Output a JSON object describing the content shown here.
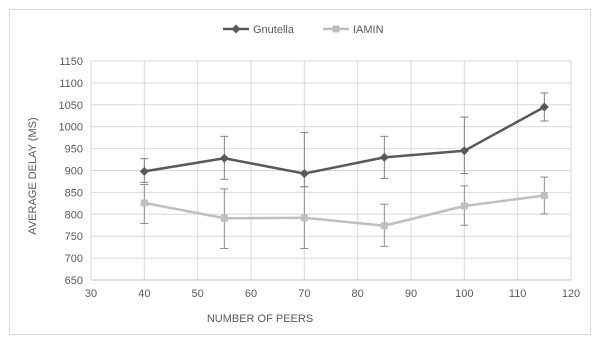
{
  "chart_data": {
    "type": "line",
    "xlabel": "NUMBER OF PEERS",
    "ylabel": "AVERAGE DELAY (MS)",
    "xlim": [
      30,
      120
    ],
    "ylim": [
      650,
      1150
    ],
    "x_ticks": [
      "30",
      "40",
      "50",
      "60",
      "70",
      "80",
      "90",
      "100",
      "110",
      "120"
    ],
    "y_ticks": [
      "650",
      "700",
      "750",
      "800",
      "850",
      "900",
      "950",
      "1000",
      "1050",
      "1100",
      "1150"
    ],
    "grid": true,
    "legend_position": "top-center",
    "x": [
      40,
      55,
      70,
      85,
      100,
      115
    ],
    "series": [
      {
        "name": "Gnutella",
        "color": "#595959",
        "marker": "diamond",
        "values": [
          898,
          928,
          893,
          930,
          945,
          1045
        ],
        "error_low": [
          873,
          880,
          863,
          882,
          893,
          1013
        ],
        "error_high": [
          927,
          978,
          987,
          978,
          1022,
          1077
        ]
      },
      {
        "name": "IAMIN",
        "color": "#bfbfbf",
        "marker": "square",
        "values": [
          826,
          791,
          792,
          774,
          819,
          843
        ],
        "error_low": [
          779,
          722,
          722,
          727,
          775,
          801
        ],
        "error_high": [
          868,
          858,
          863,
          823,
          865,
          885
        ]
      }
    ]
  }
}
